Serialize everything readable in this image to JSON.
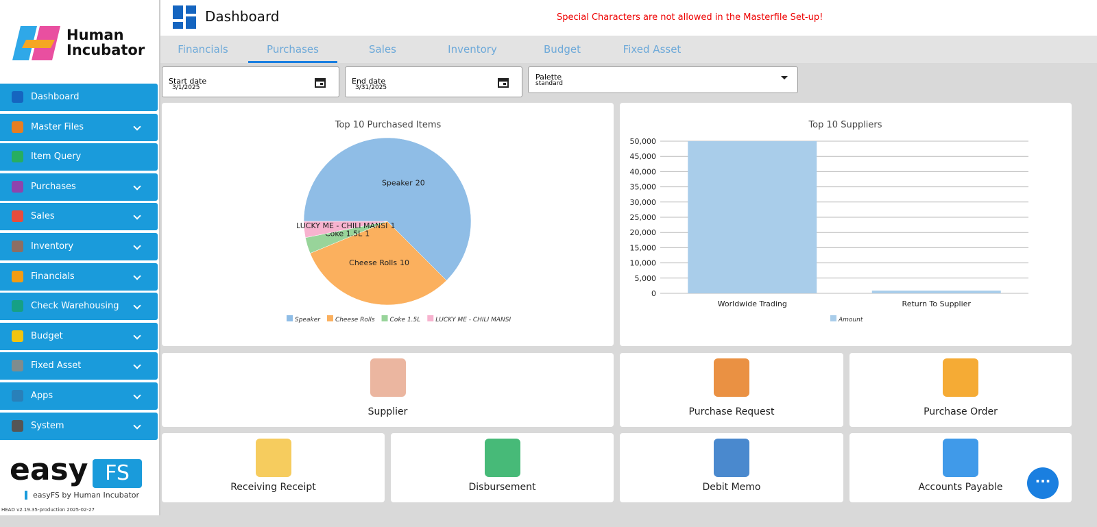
{
  "header": {
    "brand_line1": "Human",
    "brand_line2": "Incubator",
    "title": "Dashboard",
    "warning": "Special Characters are not allowed in the Masterfile Set-up!"
  },
  "sidebar": {
    "menu": [
      "Dashboard",
      "Master Files",
      "Item Query",
      "Purchases",
      "Sales",
      "Inventory",
      "Financials",
      "Check Warehousing",
      "Budget",
      "Fixed Asset",
      "Apps",
      "System"
    ],
    "footer_logo_1": "easy",
    "footer_logo_2": "FS",
    "footer_caption": "easyFS by Human Incubator",
    "version": "HEAD v2.19.35-production 2025-02-27"
  },
  "tabs": [
    "Financials",
    "Purchases",
    "Sales",
    "Inventory",
    "Budget",
    "Fixed Asset"
  ],
  "filters": {
    "start_label": "Start date",
    "start_value": "3/1/2025",
    "end_label": "End date",
    "end_value": "3/31/2025",
    "palette_label": "Palette",
    "palette_value": "standard"
  },
  "chart_data": [
    {
      "type": "pie",
      "title": "Top 10 Purchased Items",
      "categories": [
        "Speaker",
        "Cheese Rolls",
        "Coke 1.5L",
        "LUCKY ME - CHILI MANSI"
      ],
      "values": [
        20,
        10,
        1,
        1
      ],
      "colors": [
        "#8fbde6",
        "#fbb05e",
        "#98d49a",
        "#f7b3cf"
      ],
      "legend": "bottom"
    },
    {
      "type": "bar",
      "title": "Top 10 Suppliers",
      "categories": [
        "Worldwide Trading",
        "Return To Supplier"
      ],
      "series": [
        {
          "name": "Amount",
          "color": "#a9cdea",
          "values": [
            50000,
            900
          ]
        }
      ],
      "ylim": [
        0,
        50000
      ],
      "yticks": [
        0,
        {
          "value": 5000,
          "label": "5,000"
        },
        {
          "value": 10000,
          "label": "10,000"
        },
        {
          "value": 15000,
          "label": "15,000"
        },
        {
          "value": 20000,
          "label": "20,000"
        },
        {
          "value": 25000,
          "label": "25,000"
        },
        {
          "value": 30000,
          "label": "30,000"
        },
        {
          "value": 35000,
          "label": "35,000"
        },
        {
          "value": 40000,
          "label": "40,000"
        },
        {
          "value": 45000,
          "label": "45,000"
        },
        {
          "value": 50000,
          "label": "50,000"
        }
      ],
      "grid": true,
      "legend": "bottom"
    }
  ],
  "tiles": [
    "Supplier",
    "Purchase Request",
    "Purchase Order",
    "Receiving Receipt",
    "Disbursement",
    "Debit Memo",
    "Accounts Payable"
  ]
}
